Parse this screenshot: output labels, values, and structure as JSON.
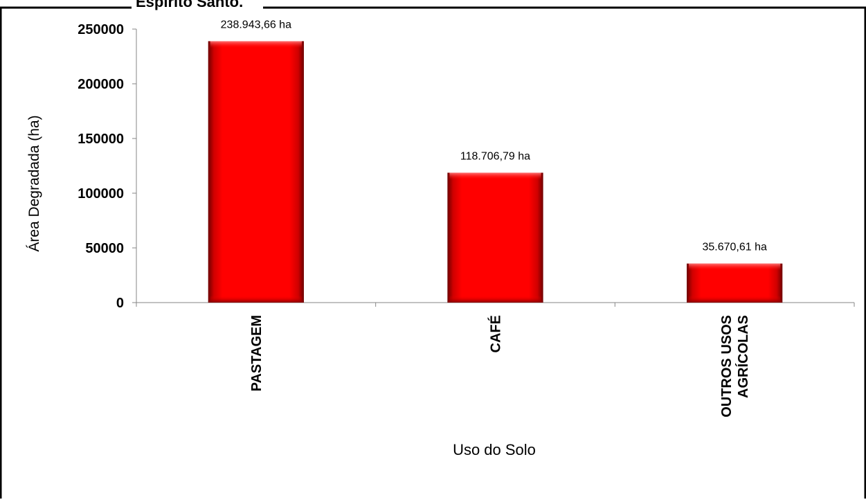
{
  "title_fragment": "Espírito Santo.",
  "chart_data": {
    "type": "bar",
    "categories": [
      "PASTAGEM",
      "CAFÉ",
      "OUTROS USOS AGRÍCOLAS"
    ],
    "category_lines": [
      [
        "PASTAGEM"
      ],
      [
        "CAFÉ"
      ],
      [
        "OUTROS USOS",
        "AGRÍCOLAS"
      ]
    ],
    "values": [
      238943.66,
      118706.79,
      35670.61
    ],
    "data_labels": [
      "238.943,66 ha",
      "118.706,79 ha",
      "35.670,61 ha"
    ],
    "xlabel": "Uso do Solo",
    "ylabel": "Área Degradada (ha)",
    "ylim": [
      0,
      250000
    ],
    "yticks": [
      0,
      50000,
      100000,
      150000,
      200000,
      250000
    ],
    "ytick_labels": [
      "0",
      "50000",
      "100000",
      "150000",
      "200000",
      "250000"
    ],
    "grid": false,
    "legend": "none",
    "bar_color": "#ff0000"
  }
}
